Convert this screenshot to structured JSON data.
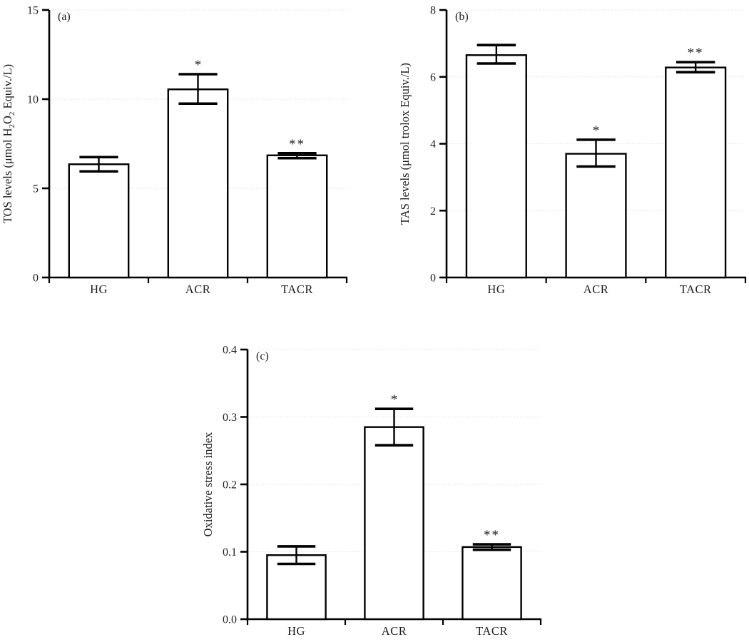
{
  "figure": {
    "background": "#ffffff",
    "bar_fill": "#ffffff",
    "bar_stroke": "#000000",
    "axis_color": "#000000",
    "grid_color": "#e4e4e4",
    "sig_color": "#1b2433",
    "text_color": "#1c1c1c"
  },
  "chart_data": [
    {
      "type": "bar",
      "panel_id": "a",
      "panel_label": "(a)",
      "ylabel": "TOS levels (μmol H2O2 Equiv./L)",
      "ylabel_parts": [
        {
          "text": "TOS levels (μmol H"
        },
        {
          "text": "2",
          "sub": true
        },
        {
          "text": "O"
        },
        {
          "text": "2",
          "sub": true
        },
        {
          "text": " Equiv./L)"
        }
      ],
      "categories": [
        "HG",
        "ACR",
        "TACR"
      ],
      "values": [
        6.35,
        10.55,
        6.85
      ],
      "err_up": [
        0.4,
        0.85,
        0.12
      ],
      "err_down": [
        0.4,
        0.8,
        0.16
      ],
      "sig": [
        "",
        "*",
        "**"
      ],
      "ylim": [
        0,
        15
      ],
      "yticks": [
        0,
        5,
        10,
        15
      ],
      "ytick_labels": [
        "0",
        "5",
        "10",
        "15"
      ],
      "grid": "dotted",
      "legend": "none"
    },
    {
      "type": "bar",
      "panel_id": "b",
      "panel_label": "(b)",
      "ylabel": "TAS levels (μmol trolox Equiv./L)",
      "ylabel_parts": [
        {
          "text": "TAS levels (μmol trolox Equiv./L)"
        }
      ],
      "categories": [
        "HG",
        "ACR",
        "TACR"
      ],
      "values": [
        6.65,
        3.7,
        6.28
      ],
      "err_up": [
        0.3,
        0.42,
        0.16
      ],
      "err_down": [
        0.25,
        0.38,
        0.14
      ],
      "sig": [
        "",
        "*",
        "**"
      ],
      "ylim": [
        0,
        8
      ],
      "yticks": [
        0,
        2,
        4,
        6,
        8
      ],
      "ytick_labels": [
        "0",
        "2",
        "4",
        "6",
        "8"
      ],
      "grid": "dotted",
      "legend": "none"
    },
    {
      "type": "bar",
      "panel_id": "c",
      "panel_label": "(c)",
      "ylabel": "Oxidative stress index",
      "ylabel_parts": [
        {
          "text": "Oxidative stress index"
        }
      ],
      "categories": [
        "HG",
        "ACR",
        "TACR"
      ],
      "values": [
        0.095,
        0.285,
        0.107
      ],
      "err_up": [
        0.013,
        0.027,
        0.004
      ],
      "err_down": [
        0.013,
        0.027,
        0.004
      ],
      "sig": [
        "",
        "*",
        "**"
      ],
      "ylim": [
        0,
        0.4
      ],
      "yticks": [
        0,
        0.1,
        0.2,
        0.3,
        0.4
      ],
      "ytick_labels": [
        "0.0",
        "0.1",
        "0.2",
        "0.3",
        "0.4"
      ],
      "grid": "dotted",
      "legend": "none"
    }
  ]
}
